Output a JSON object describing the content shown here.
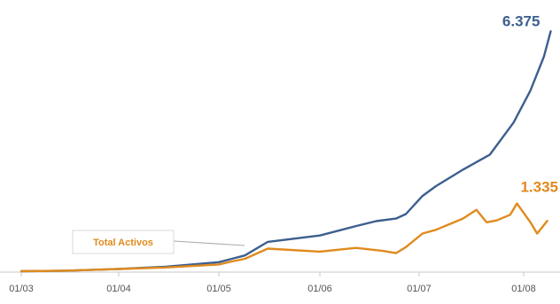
{
  "chart_data": {
    "type": "line",
    "x_tick_labels": [
      "01/03",
      "01/04",
      "01/05",
      "01/06",
      "01/07",
      "01/08"
    ],
    "series": [
      {
        "name": "",
        "color": "#3c5f8f",
        "end_label": "6.375",
        "points": [
          [
            "01/03",
            0
          ],
          [
            "15/03",
            15
          ],
          [
            "01/04",
            60
          ],
          [
            "15/04",
            120
          ],
          [
            "01/05",
            240
          ],
          [
            "05/05",
            330
          ],
          [
            "09/05",
            420
          ],
          [
            "16/05",
            780
          ],
          [
            "01/06",
            950
          ],
          [
            "12/06",
            1200
          ],
          [
            "18/06",
            1330
          ],
          [
            "24/06",
            1400
          ],
          [
            "27/06",
            1520
          ],
          [
            "02/07",
            2000
          ],
          [
            "06/07",
            2260
          ],
          [
            "14/07",
            2700
          ],
          [
            "22/07",
            3100
          ],
          [
            "29/07",
            3950
          ],
          [
            "03/08",
            4800
          ],
          [
            "07/08",
            5700
          ],
          [
            "09/08",
            6375
          ]
        ]
      },
      {
        "name": "Total Activos",
        "color": "#e08a1e",
        "end_label": "1.335",
        "points": [
          [
            "01/03",
            0
          ],
          [
            "15/03",
            15
          ],
          [
            "01/04",
            60
          ],
          [
            "15/04",
            100
          ],
          [
            "01/05",
            180
          ],
          [
            "05/05",
            260
          ],
          [
            "09/05",
            330
          ],
          [
            "16/05",
            600
          ],
          [
            "01/06",
            520
          ],
          [
            "12/06",
            620
          ],
          [
            "20/06",
            540
          ],
          [
            "24/06",
            480
          ],
          [
            "27/06",
            640
          ],
          [
            "02/07",
            1000
          ],
          [
            "06/07",
            1100
          ],
          [
            "14/07",
            1400
          ],
          [
            "18/07",
            1630
          ],
          [
            "21/07",
            1300
          ],
          [
            "24/07",
            1350
          ],
          [
            "28/07",
            1500
          ],
          [
            "30/07",
            1800
          ],
          [
            "03/08",
            1300
          ],
          [
            "05/08",
            1000
          ],
          [
            "08/08",
            1335
          ]
        ]
      }
    ],
    "annotation": {
      "text": "Total Activos",
      "color": "#e08a1e"
    },
    "ylim": [
      0,
      6500
    ],
    "grid": false
  }
}
